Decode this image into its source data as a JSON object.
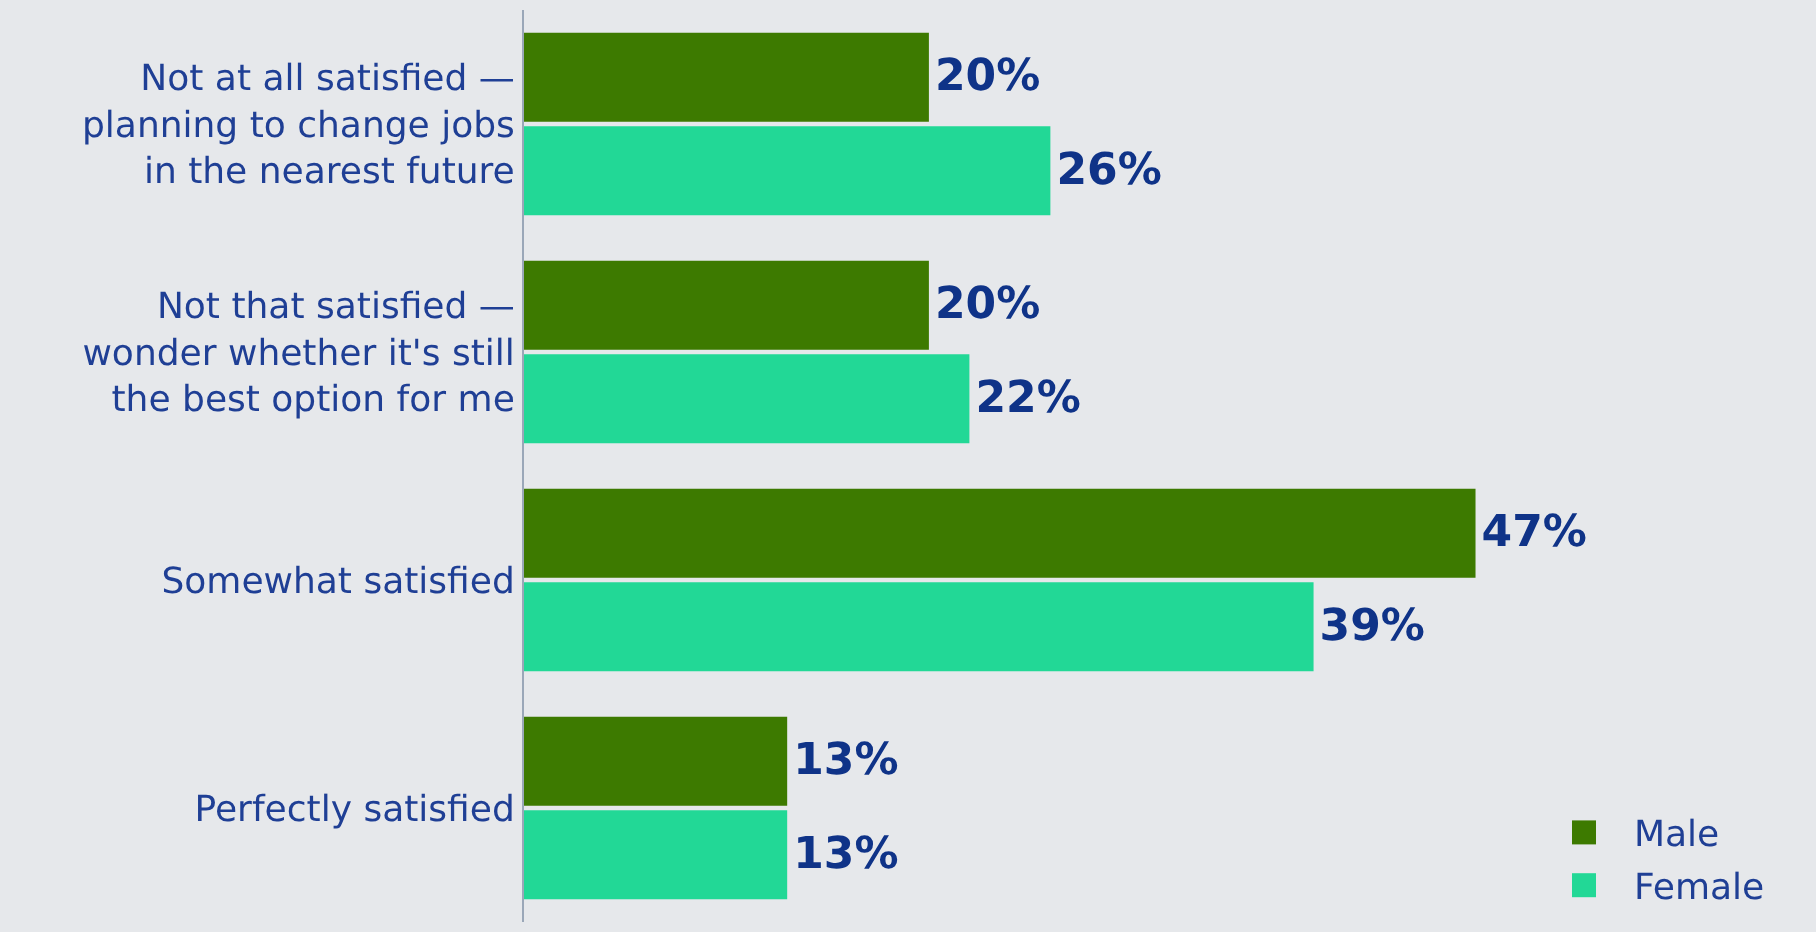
{
  "chart_data": {
    "type": "bar",
    "orientation": "horizontal",
    "categories": [
      "Not at all satisfied —\nplanning to change jobs\nin the nearest future",
      "Not that satisfied —\nwonder whether it's still\nthe best option for me",
      "Somewhat satisfied",
      "Perfectly satisfied"
    ],
    "series": [
      {
        "name": "Male",
        "color": "#3d7a00",
        "values": [
          20,
          20,
          47,
          13
        ],
        "value_labels": [
          "20%",
          "20%",
          "47%",
          "13%"
        ]
      },
      {
        "name": "Female",
        "color": "#22d896",
        "values": [
          26,
          22,
          39,
          13
        ],
        "value_labels": [
          "26%",
          "22%",
          "39%",
          "13%"
        ]
      }
    ],
    "tick_labels": "y",
    "grid": false,
    "legend": "bottom right"
  }
}
